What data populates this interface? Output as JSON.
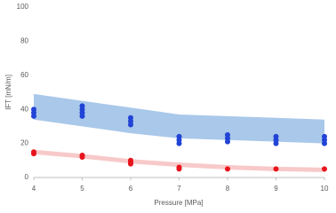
{
  "chart_data": {
    "type": "scatter",
    "x_label": "Pressure [MPa]",
    "y_label": "IFT [mN/m]",
    "xlim": [
      4,
      10
    ],
    "ylim": [
      0,
      100
    ],
    "xticks": [
      4,
      5,
      6,
      7,
      8,
      9,
      10
    ],
    "yticks": [
      0,
      20,
      40,
      60,
      80,
      100
    ],
    "grid": false,
    "bands": [
      {
        "color": "#a9c8ea",
        "x": [
          4,
          5,
          6,
          7,
          8,
          9,
          10
        ],
        "upper": [
          49,
          45,
          41,
          37,
          36,
          35,
          34
        ],
        "lower": [
          34,
          30,
          26,
          23,
          22,
          21,
          20
        ]
      }
    ],
    "lines": [
      {
        "color": "#f8c9c9",
        "x": [
          4,
          5,
          6,
          7,
          8,
          9,
          10
        ],
        "values": [
          15,
          12.5,
          9.5,
          7.5,
          6,
          5,
          4.5
        ]
      }
    ],
    "series": [
      {
        "color": "#2143d6",
        "x": [
          4,
          4,
          4,
          5,
          5,
          5,
          5,
          6,
          6,
          6,
          7,
          7,
          7,
          8,
          8,
          8,
          9,
          9,
          9,
          10,
          10,
          10
        ],
        "values": [
          40,
          38,
          36,
          42,
          40,
          38,
          36,
          35,
          33,
          31,
          24,
          22,
          20,
          25,
          23,
          21,
          24,
          22,
          20,
          24,
          22,
          20
        ]
      },
      {
        "color": "#e8141c",
        "x": [
          4,
          4,
          5,
          5,
          6,
          6,
          6,
          7,
          7,
          8,
          9,
          10
        ],
        "values": [
          15,
          14,
          13,
          12,
          10,
          9,
          8,
          6,
          5,
          5,
          5,
          5
        ]
      }
    ]
  }
}
